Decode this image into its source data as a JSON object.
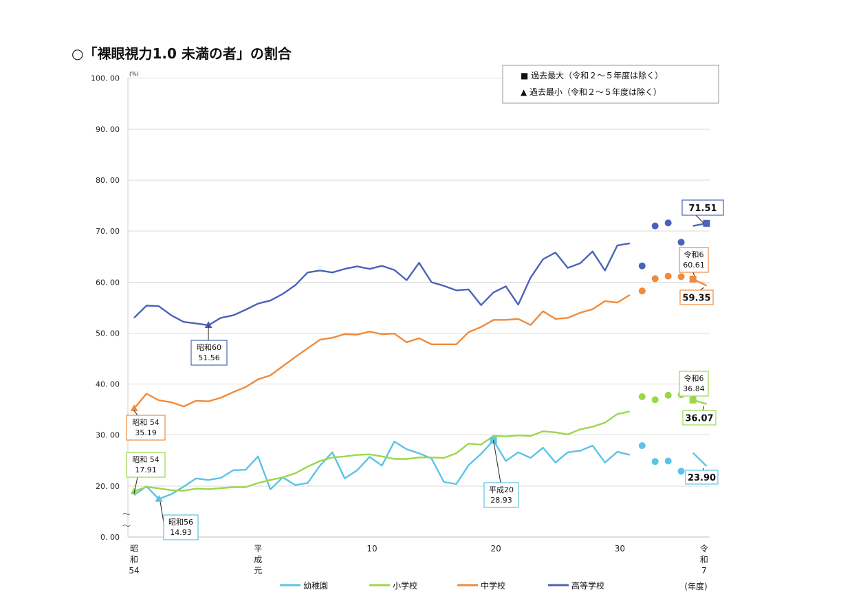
{
  "chart_data": {
    "type": "line",
    "title": "○「裸眼視力1.0 未満の者」の割合",
    "ylabel": "(%)",
    "xlabel": "(年度)",
    "ylim": [
      0,
      100
    ],
    "yticks": [
      "0. 00",
      "20. 00",
      "30. 00",
      "40. 00",
      "50. 00",
      "60. 00",
      "70. 00",
      "80. 00",
      "90. 00",
      "100. 00"
    ],
    "axis_break_symbol": "〜",
    "x_tick_labels": [
      {
        "lines": [
          "昭",
          "和",
          "54"
        ]
      },
      {
        "lines": [
          "平",
          "成",
          "元"
        ]
      },
      {
        "lines": [
          "10"
        ]
      },
      {
        "lines": [
          "20"
        ]
      },
      {
        "lines": [
          "30"
        ]
      },
      {
        "lines": [
          "令",
          "和",
          "7"
        ]
      }
    ],
    "legend_markers": [
      {
        "symbol": "■",
        "label": "過去最大（令和２～５年度は除く）"
      },
      {
        "symbol": "▲",
        "label": "過去最小（令和２～５年度は除く）"
      }
    ],
    "series": [
      {
        "name": "幼稚園",
        "color": "#5bc3e6",
        "line_values": [
          16.5,
          19.9,
          14.93,
          16.8,
          19.8,
          21.5,
          21.2,
          21.6,
          23.1,
          23.2,
          25.8,
          18.7,
          21.7,
          20.2,
          20.6,
          24.0,
          26.6,
          21.5,
          23.1,
          25.7,
          24.0,
          28.7,
          27.2,
          26.4,
          25.4,
          20.8,
          20.4,
          24.1,
          26.3,
          28.93,
          24.9,
          26.6,
          25.5,
          27.5,
          24.6,
          26.6,
          26.9,
          27.9,
          24.6,
          26.7,
          26.1
        ],
        "covid_points": [
          27.9,
          24.8,
          24.9,
          22.9
        ],
        "recent_values": [
          26.5,
          23.9
        ]
      },
      {
        "name": "小学校",
        "color": "#9ad84a",
        "line_values": [
          17.91,
          19.7,
          19.1,
          18.4,
          18.2,
          19.0,
          18.8,
          19.2,
          19.6,
          19.6,
          20.6,
          21.2,
          21.7,
          22.5,
          23.8,
          24.9,
          25.6,
          25.8,
          26.1,
          26.2,
          25.8,
          25.3,
          25.3,
          25.6,
          25.6,
          25.5,
          26.4,
          28.3,
          28.1,
          29.8,
          29.7,
          29.9,
          29.8,
          30.7,
          30.5,
          30.1,
          31.1,
          31.6,
          32.4,
          34.1,
          34.6
        ],
        "covid_points": [
          37.5,
          36.9,
          37.8,
          37.9
        ],
        "recent_values": [
          36.84,
          36.07
        ]
      },
      {
        "name": "中学校",
        "color": "#f08a3c",
        "line_values": [
          35.19,
          38.1,
          36.8,
          36.4,
          35.6,
          36.7,
          36.6,
          37.3,
          38.4,
          39.4,
          40.9,
          41.7,
          43.5,
          45.3,
          47.0,
          48.7,
          49.1,
          49.8,
          49.7,
          50.3,
          49.8,
          49.9,
          48.2,
          49.0,
          47.8,
          47.8,
          47.8,
          50.2,
          51.2,
          52.6,
          52.6,
          52.8,
          51.6,
          54.3,
          52.8,
          53.0,
          54.0,
          54.7,
          56.3,
          56.0,
          57.5
        ],
        "covid_points": [
          58.3,
          60.7,
          61.2,
          61.1
        ],
        "recent_values": [
          60.61,
          59.35
        ]
      },
      {
        "name": "高等学校",
        "color": "#4a63b8",
        "line_values": [
          53.0,
          55.4,
          55.3,
          53.5,
          52.2,
          51.9,
          51.56,
          53.0,
          53.5,
          54.6,
          55.8,
          56.4,
          57.7,
          59.4,
          61.9,
          62.3,
          61.9,
          62.6,
          63.1,
          62.6,
          63.2,
          62.4,
          60.4,
          63.8,
          60.0,
          59.3,
          58.4,
          58.6,
          55.5,
          58.0,
          59.2,
          55.6,
          60.9,
          64.5,
          65.8,
          62.8,
          63.7,
          66.0,
          62.3,
          67.2,
          67.6
        ],
        "covid_points": [
          63.2,
          71.0,
          71.6,
          67.8
        ],
        "recent_values": [
          71.0,
          71.51
        ]
      }
    ],
    "callouts": [
      {
        "series": "高等学校",
        "kind": "min",
        "lines": [
          "昭和60",
          "51.56"
        ]
      },
      {
        "series": "中学校",
        "kind": "min",
        "lines": [
          "昭和 54",
          "35.19"
        ]
      },
      {
        "series": "小学校",
        "kind": "min",
        "lines": [
          "昭和 54",
          "17.91"
        ]
      },
      {
        "series": "幼稚園",
        "kind": "min",
        "lines": [
          "昭和56",
          "14.93"
        ]
      },
      {
        "series": "幼稚園",
        "kind": "max",
        "lines": [
          "平成20",
          "28.93"
        ]
      },
      {
        "series": "高等学校",
        "kind": "current",
        "lines": [
          "71.51"
        ]
      },
      {
        "series": "中学校",
        "kind": "prev",
        "lines": [
          "令和6",
          "60.61"
        ]
      },
      {
        "series": "中学校",
        "kind": "current",
        "lines": [
          "59.35"
        ]
      },
      {
        "series": "小学校",
        "kind": "prev",
        "lines": [
          "令和6",
          "36.84"
        ]
      },
      {
        "series": "小学校",
        "kind": "current",
        "lines": [
          "36.07"
        ]
      },
      {
        "series": "幼稚園",
        "kind": "current",
        "lines": [
          "23.90"
        ]
      }
    ]
  }
}
